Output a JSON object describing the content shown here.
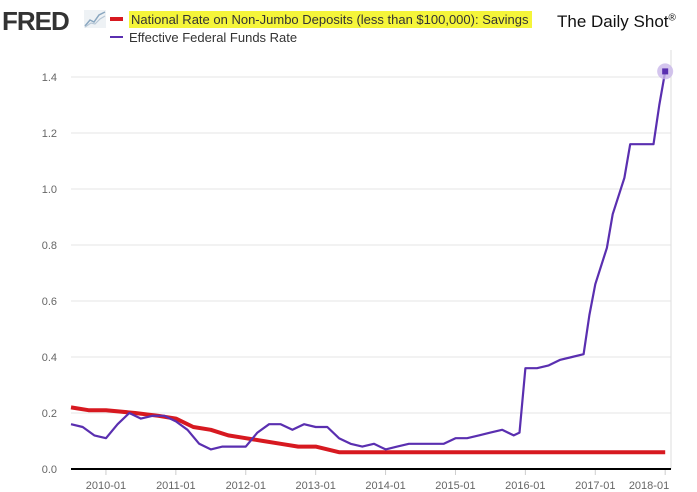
{
  "header": {
    "logo": "FRED",
    "brand": "The Daily Shot",
    "brand_mark": "®"
  },
  "colors": {
    "savings": "#d71920",
    "fedfunds": "#5a2fb0",
    "grid": "#e6e6e6",
    "highlight": "#f5f53a"
  },
  "chart_data": {
    "type": "line",
    "title": "",
    "xlabel": "",
    "ylabel": "",
    "ylim": [
      0,
      1.5
    ],
    "xlim": [
      "2009-07",
      "2018-02"
    ],
    "grid": true,
    "legend_placement": "top-left",
    "y_ticks": [
      "0.0",
      "0.2",
      "0.4",
      "0.6",
      "0.8",
      "1.0",
      "1.2",
      "1.4"
    ],
    "x_ticks": [
      "2010-01",
      "2011-01",
      "2012-01",
      "2013-01",
      "2014-01",
      "2015-01",
      "2016-01",
      "2017-01",
      "2018-01"
    ],
    "series": [
      {
        "name": "National Rate on Non-Jumbo Deposits (less than $100,000): Savings",
        "color": "#d71920",
        "x": [
          "2009-07",
          "2009-10",
          "2010-01",
          "2010-06",
          "2010-10",
          "2011-01",
          "2011-04",
          "2011-07",
          "2011-10",
          "2012-01",
          "2012-04",
          "2012-07",
          "2012-10",
          "2013-01",
          "2013-05",
          "2014-01",
          "2015-01",
          "2016-01",
          "2017-01",
          "2018-01"
        ],
        "y": [
          0.22,
          0.21,
          0.21,
          0.2,
          0.19,
          0.18,
          0.15,
          0.14,
          0.12,
          0.11,
          0.1,
          0.09,
          0.08,
          0.08,
          0.06,
          0.06,
          0.06,
          0.06,
          0.06,
          0.06
        ]
      },
      {
        "name": "Effective Federal Funds Rate",
        "color": "#5a2fb0",
        "x": [
          "2009-07",
          "2009-09",
          "2009-11",
          "2010-01",
          "2010-03",
          "2010-05",
          "2010-07",
          "2010-09",
          "2010-11",
          "2011-01",
          "2011-03",
          "2011-05",
          "2011-07",
          "2011-09",
          "2011-11",
          "2012-01",
          "2012-03",
          "2012-05",
          "2012-07",
          "2012-09",
          "2012-11",
          "2013-01",
          "2013-03",
          "2013-05",
          "2013-07",
          "2013-09",
          "2013-11",
          "2014-01",
          "2014-03",
          "2014-05",
          "2014-07",
          "2014-09",
          "2014-11",
          "2015-01",
          "2015-03",
          "2015-05",
          "2015-07",
          "2015-09",
          "2015-11",
          "2015-12",
          "2016-01",
          "2016-03",
          "2016-05",
          "2016-07",
          "2016-09",
          "2016-11",
          "2016-12",
          "2017-01",
          "2017-03",
          "2017-04",
          "2017-06",
          "2017-07",
          "2017-09",
          "2017-11",
          "2017-12",
          "2018-01"
        ],
        "y": [
          0.16,
          0.15,
          0.12,
          0.11,
          0.16,
          0.2,
          0.18,
          0.19,
          0.19,
          0.17,
          0.14,
          0.09,
          0.07,
          0.08,
          0.08,
          0.08,
          0.13,
          0.16,
          0.16,
          0.14,
          0.16,
          0.15,
          0.15,
          0.11,
          0.09,
          0.08,
          0.09,
          0.07,
          0.08,
          0.09,
          0.09,
          0.09,
          0.09,
          0.11,
          0.11,
          0.12,
          0.13,
          0.14,
          0.12,
          0.13,
          0.36,
          0.36,
          0.37,
          0.39,
          0.4,
          0.41,
          0.55,
          0.66,
          0.79,
          0.91,
          1.04,
          1.16,
          1.16,
          1.16,
          1.3,
          1.42
        ]
      }
    ]
  }
}
